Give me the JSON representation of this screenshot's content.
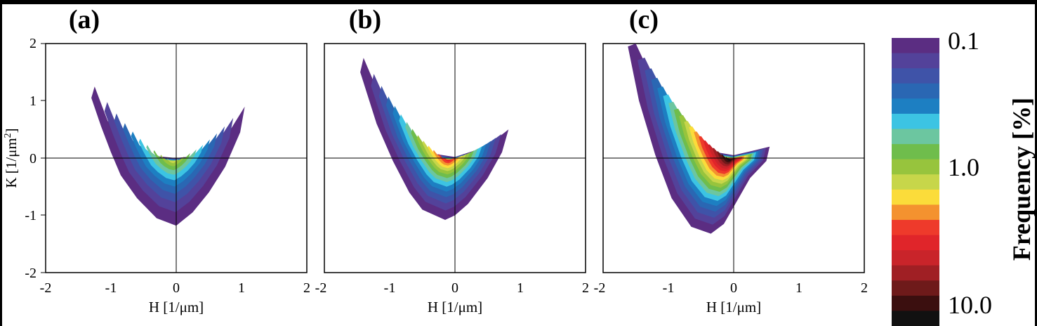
{
  "chart_data": [
    {
      "type": "heatmap",
      "panel_label": "(a)",
      "xlabel": "H [1/μm]",
      "ylabel": "K [1/μm²]",
      "ylabel_main": "K [1/μm",
      "ylabel_sup": "2",
      "ylabel_end": "]",
      "xlim": [
        -2,
        2
      ],
      "ylim": [
        -2,
        2
      ],
      "xticks": [
        "-2",
        "-1",
        "0",
        "1",
        "2"
      ],
      "yticks": [
        "2",
        "1",
        "0",
        "-1",
        "-2"
      ],
      "outer_contour": [
        [
          -1.25,
          1.25
        ],
        [
          -1.05,
          0.65
        ],
        [
          -0.75,
          0.25
        ],
        [
          -0.45,
          0.05
        ],
        [
          0,
          0
        ],
        [
          0.4,
          0.05
        ],
        [
          0.75,
          0.35
        ],
        [
          1.05,
          0.9
        ],
        [
          0.98,
          0.45
        ],
        [
          0.75,
          -0.15
        ],
        [
          0.5,
          -0.6
        ],
        [
          0.25,
          -0.95
        ],
        [
          0,
          -1.18
        ],
        [
          -0.3,
          -1.05
        ],
        [
          -0.6,
          -0.7
        ],
        [
          -0.85,
          -0.3
        ],
        [
          -1.0,
          0.1
        ],
        [
          -1.15,
          0.55
        ],
        [
          -1.3,
          1.05
        ]
      ],
      "peak_center": [
        -0.05,
        -0.05
      ],
      "peak_frequency_max": 1.0
    },
    {
      "type": "heatmap",
      "panel_label": "(b)",
      "xlabel": "H [1/μm]",
      "xlim": [
        -2,
        2
      ],
      "ylim": [
        -2,
        2
      ],
      "xticks": [
        "-2",
        "-1",
        "0",
        "1",
        "2"
      ],
      "outer_contour": [
        [
          -1.4,
          1.75
        ],
        [
          -1.1,
          0.95
        ],
        [
          -0.7,
          0.35
        ],
        [
          -0.35,
          0.08
        ],
        [
          0,
          0.02
        ],
        [
          0.35,
          0.15
        ],
        [
          0.65,
          0.35
        ],
        [
          0.82,
          0.5
        ],
        [
          0.72,
          0.1
        ],
        [
          0.5,
          -0.35
        ],
        [
          0.2,
          -0.8
        ],
        [
          0,
          -1.0
        ],
        [
          -0.15,
          -1.08
        ],
        [
          -0.5,
          -0.9
        ],
        [
          -0.7,
          -0.6
        ],
        [
          -0.95,
          -0.05
        ],
        [
          -1.2,
          0.6
        ],
        [
          -1.45,
          1.5
        ]
      ],
      "peak_center": [
        -0.1,
        -0.03
      ],
      "peak_frequency_max": 3.0
    },
    {
      "type": "heatmap",
      "panel_label": "(c)",
      "xlabel": "H [1/μm]",
      "xlim": [
        -2,
        2
      ],
      "ylim": [
        -2,
        2
      ],
      "xticks": [
        "-2",
        "-1",
        "0",
        "1",
        "2"
      ],
      "outer_contour": [
        [
          -1.5,
          2.0
        ],
        [
          -1.15,
          1.15
        ],
        [
          -0.75,
          0.45
        ],
        [
          -0.35,
          0.12
        ],
        [
          0,
          0.05
        ],
        [
          0.3,
          0.13
        ],
        [
          0.55,
          0.2
        ],
        [
          0.5,
          -0.05
        ],
        [
          0.25,
          -0.35
        ],
        [
          0.05,
          -0.75
        ],
        [
          -0.15,
          -1.15
        ],
        [
          -0.35,
          -1.32
        ],
        [
          -0.65,
          -1.2
        ],
        [
          -0.95,
          -0.7
        ],
        [
          -1.2,
          0.05
        ],
        [
          -1.45,
          1.0
        ],
        [
          -1.62,
          1.95
        ]
      ],
      "peak_center": [
        -0.05,
        -0.02
      ],
      "peak_frequency_max": 10.0
    }
  ],
  "colorbar": {
    "label": "Frequency [%]",
    "tick_labels": [
      "0.1",
      "1.0",
      "10.0"
    ],
    "scale": "log",
    "range": [
      0.1,
      10.0
    ],
    "colors": [
      "#5b2d82",
      "#53429a",
      "#3f53a8",
      "#2a67b3",
      "#1d7fc2",
      "#3cc4e3",
      "#6cc6a0",
      "#6fbd4c",
      "#97c43d",
      "#c7d64a",
      "#fbdc3a",
      "#f4922f",
      "#ee3a2b",
      "#e0252a",
      "#c9242a",
      "#a01f24",
      "#6e1a1a",
      "#3b0f0f",
      "#111111"
    ]
  }
}
